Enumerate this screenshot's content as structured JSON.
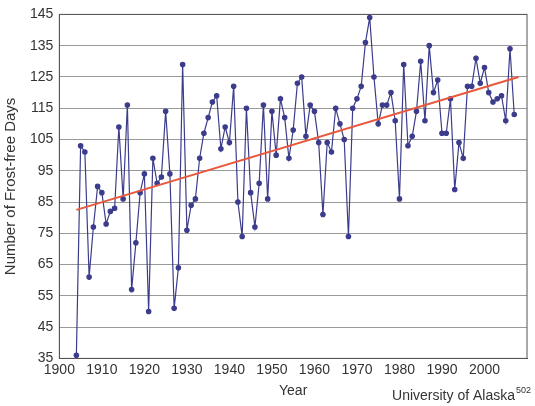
{
  "chart_data": {
    "type": "line",
    "y_label": "Number of Frost-free Days",
    "x_label": "Year",
    "annotations": [
      "University of Alaska",
      "502"
    ],
    "xlim": [
      1900,
      2010
    ],
    "xticks": [
      1900,
      1910,
      1920,
      1930,
      1940,
      1950,
      1960,
      1970,
      1980,
      1990,
      2000
    ],
    "ylim": [
      35,
      145
    ],
    "yticks": [
      35,
      45,
      55,
      65,
      75,
      85,
      95,
      105,
      115,
      125,
      135,
      145
    ],
    "grid": "y",
    "series": [
      {
        "color": "#3c3c8c",
        "marker": "circle",
        "line_style": "solid",
        "x": [
          1904,
          1905,
          1906,
          1907,
          1908,
          1909,
          1910,
          1911,
          1912,
          1913,
          1914,
          1915,
          1916,
          1917,
          1918,
          1919,
          1920,
          1921,
          1922,
          1923,
          1924,
          1925,
          1926,
          1927,
          1928,
          1929,
          1930,
          1931,
          1932,
          1933,
          1934,
          1935,
          1936,
          1937,
          1938,
          1939,
          1940,
          1941,
          1942,
          1943,
          1944,
          1945,
          1946,
          1947,
          1948,
          1949,
          1950,
          1951,
          1952,
          1953,
          1954,
          1955,
          1956,
          1957,
          1958,
          1959,
          1960,
          1961,
          1962,
          1963,
          1964,
          1965,
          1966,
          1967,
          1968,
          1969,
          1970,
          1971,
          1972,
          1973,
          1974,
          1975,
          1976,
          1977,
          1978,
          1979,
          1980,
          1981,
          1982,
          1983,
          1984,
          1985,
          1986,
          1987,
          1988,
          1989,
          1990,
          1991,
          1992,
          1993,
          1994,
          1995,
          1996,
          1997,
          1998,
          1999,
          2000,
          2001,
          2002,
          2003,
          2004,
          2005,
          2006,
          2007
        ],
        "values": [
          36,
          103,
          101,
          61,
          77,
          90,
          88,
          78,
          82,
          83,
          109,
          86,
          116,
          57,
          72,
          88,
          94,
          50,
          99,
          91,
          93,
          114,
          94,
          51,
          64,
          129,
          76,
          84,
          86,
          99,
          107,
          112,
          117,
          119,
          102,
          109,
          104,
          122,
          85,
          74,
          115,
          88,
          77,
          91,
          116,
          86,
          114,
          100,
          118,
          112,
          99,
          108,
          123,
          125,
          106,
          116,
          114,
          104,
          81,
          104,
          101,
          115,
          110,
          105,
          74,
          115,
          118,
          122,
          136,
          144,
          125,
          110,
          116,
          116,
          120,
          111,
          86,
          129,
          103,
          106,
          114,
          130,
          111,
          135,
          120,
          124,
          107,
          107,
          118,
          89,
          104,
          99,
          122,
          122,
          131,
          123,
          128,
          120,
          117,
          118,
          119,
          111,
          134,
          113
        ]
      },
      {
        "color": "#e8583c",
        "marker": "none",
        "line_style": "solid",
        "x": [
          1904,
          2008
        ],
        "values": [
          82.5,
          125
        ]
      }
    ]
  }
}
